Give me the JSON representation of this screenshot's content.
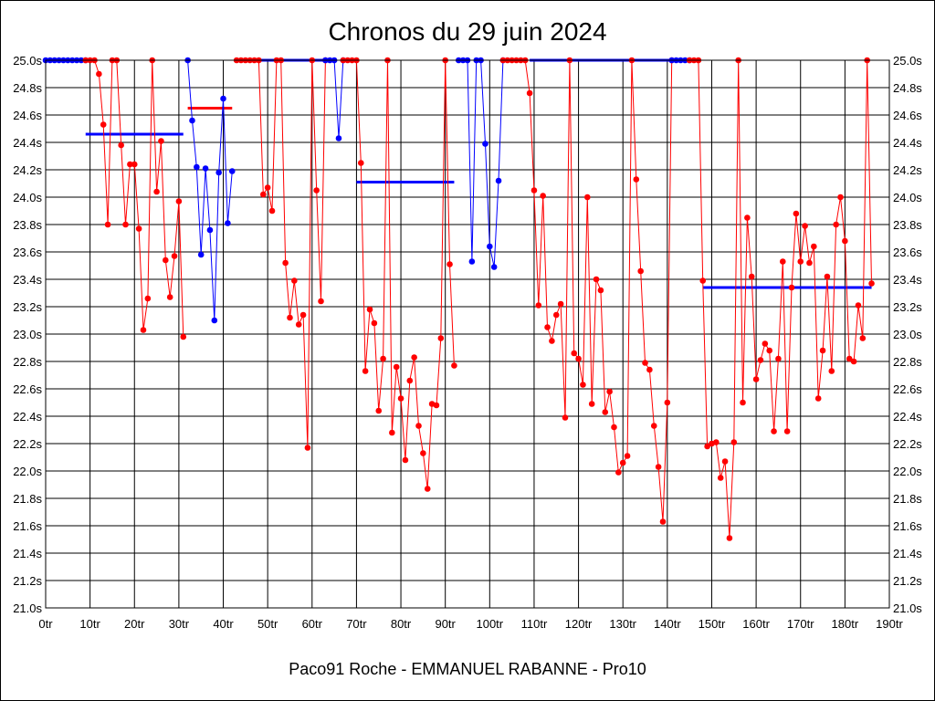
{
  "chart_data": {
    "type": "line",
    "title": "Chronos du 29 juin 2024",
    "subtitle": "Paco91 Roche - EMMANUEL RABANNE - Pro10",
    "x_ticks": [
      "0tr",
      "10tr",
      "20tr",
      "30tr",
      "40tr",
      "50tr",
      "60tr",
      "70tr",
      "80tr",
      "90tr",
      "100tr",
      "110tr",
      "120tr",
      "130tr",
      "140tr",
      "150tr",
      "160tr",
      "170tr",
      "180tr",
      "190tr"
    ],
    "y_ticks": [
      "21.0s",
      "21.2s",
      "21.4s",
      "21.6s",
      "21.8s",
      "22.0s",
      "22.2s",
      "22.4s",
      "22.6s",
      "22.8s",
      "23.0s",
      "23.2s",
      "23.4s",
      "23.6s",
      "23.8s",
      "24.0s",
      "24.2s",
      "24.4s",
      "24.6s",
      "24.8s",
      "25.0s"
    ],
    "xlim": [
      0,
      190
    ],
    "ylim": [
      21.0,
      25.0
    ],
    "grid": true,
    "colors": {
      "red": "#ff0000",
      "blue": "#0000ff"
    },
    "segments": [
      {
        "color": "blue",
        "points": [
          [
            0,
            25.0
          ],
          [
            1,
            25.0
          ],
          [
            2,
            25.0
          ],
          [
            3,
            25.0
          ],
          [
            4,
            25.0
          ],
          [
            5,
            25.0
          ],
          [
            6,
            25.0
          ],
          [
            7,
            25.0
          ],
          [
            8,
            25.0
          ],
          [
            9,
            25.0
          ]
        ]
      },
      {
        "color": "red",
        "points": [
          [
            9,
            25.0
          ],
          [
            10,
            25.0
          ],
          [
            11,
            25.0
          ],
          [
            12,
            24.9
          ],
          [
            13,
            24.53
          ],
          [
            14,
            23.8
          ],
          [
            15,
            25.0
          ],
          [
            16,
            25.0
          ],
          [
            17,
            24.38
          ],
          [
            18,
            23.8
          ],
          [
            19,
            24.24
          ],
          [
            20,
            24.24
          ],
          [
            21,
            23.77
          ],
          [
            22,
            23.03
          ],
          [
            23,
            23.26
          ],
          [
            24,
            25.0
          ],
          [
            25,
            24.04
          ],
          [
            26,
            24.41
          ],
          [
            27,
            23.54
          ],
          [
            28,
            23.27
          ],
          [
            29,
            23.57
          ],
          [
            30,
            23.97
          ],
          [
            31,
            22.98
          ]
        ]
      },
      {
        "color": "blue",
        "points": [
          [
            32,
            25.0
          ],
          [
            33,
            24.56
          ],
          [
            34,
            24.22
          ],
          [
            35,
            23.58
          ],
          [
            36,
            24.21
          ],
          [
            37,
            23.76
          ],
          [
            38,
            23.1
          ],
          [
            39,
            24.18
          ],
          [
            40,
            24.72
          ],
          [
            41,
            23.81
          ],
          [
            42,
            24.19
          ]
        ]
      },
      {
        "color": "red",
        "points": [
          [
            43,
            25.0
          ],
          [
            44,
            25.0
          ],
          [
            45,
            25.0
          ],
          [
            46,
            25.0
          ],
          [
            47,
            25.0
          ],
          [
            48,
            25.0
          ],
          [
            49,
            24.02
          ],
          [
            50,
            24.07
          ],
          [
            51,
            23.9
          ],
          [
            52,
            25.0
          ],
          [
            53,
            25.0
          ],
          [
            54,
            23.52
          ],
          [
            55,
            23.12
          ],
          [
            56,
            23.39
          ],
          [
            57,
            23.07
          ],
          [
            58,
            23.14
          ],
          [
            59,
            22.17
          ],
          [
            60,
            25.0
          ],
          [
            61,
            24.05
          ],
          [
            62,
            23.24
          ],
          [
            63,
            25.0
          ]
        ]
      },
      {
        "color": "blue",
        "points": [
          [
            63,
            25.0
          ],
          [
            64,
            25.0
          ],
          [
            65,
            25.0
          ],
          [
            66,
            24.43
          ],
          [
            67,
            25.0
          ]
        ]
      },
      {
        "color": "red",
        "points": [
          [
            67,
            25.0
          ],
          [
            68,
            25.0
          ],
          [
            69,
            25.0
          ],
          [
            70,
            25.0
          ],
          [
            71,
            24.25
          ],
          [
            72,
            22.73
          ],
          [
            73,
            23.18
          ],
          [
            74,
            23.08
          ],
          [
            75,
            22.44
          ],
          [
            76,
            22.82
          ],
          [
            77,
            25.0
          ],
          [
            78,
            22.28
          ],
          [
            79,
            22.76
          ],
          [
            80,
            22.53
          ],
          [
            81,
            22.08
          ],
          [
            82,
            22.66
          ],
          [
            83,
            22.83
          ],
          [
            84,
            22.33
          ],
          [
            85,
            22.13
          ],
          [
            86,
            21.87
          ],
          [
            87,
            22.49
          ],
          [
            88,
            22.48
          ],
          [
            89,
            22.97
          ],
          [
            90,
            25.0
          ],
          [
            91,
            23.51
          ],
          [
            92,
            22.77
          ]
        ]
      },
      {
        "color": "blue",
        "points": [
          [
            93,
            25.0
          ],
          [
            94,
            25.0
          ],
          [
            95,
            25.0
          ],
          [
            96,
            23.53
          ],
          [
            97,
            25.0
          ],
          [
            98,
            25.0
          ],
          [
            99,
            24.39
          ],
          [
            100,
            23.64
          ],
          [
            101,
            23.49
          ],
          [
            102,
            24.12
          ],
          [
            103,
            25.0
          ]
        ]
      },
      {
        "color": "red",
        "points": [
          [
            103,
            25.0
          ],
          [
            104,
            25.0
          ],
          [
            105,
            25.0
          ],
          [
            106,
            25.0
          ],
          [
            107,
            25.0
          ],
          [
            108,
            25.0
          ],
          [
            109,
            24.76
          ],
          [
            110,
            24.05
          ],
          [
            111,
            23.21
          ],
          [
            112,
            24.01
          ],
          [
            113,
            23.05
          ],
          [
            114,
            22.95
          ],
          [
            115,
            23.14
          ],
          [
            116,
            23.22
          ],
          [
            117,
            22.39
          ],
          [
            118,
            25.0
          ],
          [
            119,
            22.86
          ],
          [
            120,
            22.82
          ],
          [
            121,
            22.63
          ],
          [
            122,
            24.0
          ],
          [
            123,
            22.49
          ],
          [
            124,
            23.4
          ],
          [
            125,
            23.32
          ],
          [
            126,
            22.43
          ],
          [
            127,
            22.58
          ],
          [
            128,
            22.32
          ],
          [
            129,
            21.99
          ],
          [
            130,
            22.06
          ],
          [
            131,
            22.11
          ],
          [
            132,
            25.0
          ],
          [
            133,
            24.13
          ],
          [
            134,
            23.46
          ],
          [
            135,
            22.79
          ],
          [
            136,
            22.74
          ],
          [
            137,
            22.33
          ],
          [
            138,
            22.03
          ],
          [
            139,
            21.63
          ],
          [
            140,
            22.5
          ],
          [
            141,
            25.0
          ]
        ]
      },
      {
        "color": "blue",
        "points": [
          [
            141,
            25.0
          ],
          [
            142,
            25.0
          ],
          [
            143,
            25.0
          ],
          [
            144,
            25.0
          ],
          [
            145,
            25.0
          ]
        ]
      },
      {
        "color": "red",
        "points": [
          [
            145,
            25.0
          ],
          [
            146,
            25.0
          ],
          [
            147,
            25.0
          ],
          [
            148,
            23.39
          ],
          [
            149,
            22.18
          ],
          [
            150,
            22.2
          ],
          [
            151,
            22.21
          ],
          [
            152,
            21.95
          ],
          [
            153,
            22.07
          ],
          [
            154,
            21.51
          ],
          [
            155,
            22.21
          ],
          [
            156,
            25.0
          ],
          [
            157,
            22.5
          ],
          [
            158,
            23.85
          ],
          [
            159,
            23.42
          ],
          [
            160,
            22.67
          ],
          [
            161,
            22.81
          ],
          [
            162,
            22.93
          ],
          [
            163,
            22.88
          ],
          [
            164,
            22.29
          ],
          [
            165,
            22.82
          ],
          [
            166,
            23.53
          ],
          [
            167,
            22.29
          ],
          [
            168,
            23.34
          ],
          [
            169,
            23.88
          ],
          [
            170,
            23.53
          ],
          [
            171,
            23.79
          ],
          [
            172,
            23.52
          ],
          [
            173,
            23.64
          ],
          [
            174,
            22.53
          ],
          [
            175,
            22.88
          ],
          [
            176,
            23.42
          ],
          [
            177,
            22.73
          ],
          [
            178,
            23.8
          ],
          [
            179,
            24.0
          ],
          [
            180,
            23.68
          ],
          [
            181,
            22.82
          ],
          [
            182,
            22.8
          ],
          [
            183,
            23.21
          ],
          [
            184,
            22.97
          ],
          [
            185,
            25.0
          ],
          [
            186,
            23.37
          ]
        ]
      }
    ],
    "average_lines": [
      {
        "color": "blue",
        "x": [
          9,
          31
        ],
        "y": 24.46
      },
      {
        "color": "red",
        "x": [
          32,
          42
        ],
        "y": 24.65
      },
      {
        "color": "blue",
        "x": [
          43,
          63
        ],
        "y": 25.0
      },
      {
        "color": "blue",
        "x": [
          70,
          92
        ],
        "y": 24.11
      },
      {
        "color": "red",
        "x": [
          103,
          108
        ],
        "y": 25.0
      },
      {
        "color": "blue",
        "x": [
          109,
          141
        ],
        "y": 25.0
      },
      {
        "color": "blue",
        "x": [
          148,
          186
        ],
        "y": 23.34
      }
    ]
  }
}
